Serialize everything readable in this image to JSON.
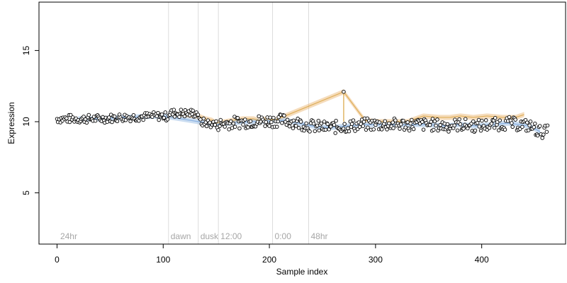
{
  "chart_data": {
    "type": "scatter",
    "title": "",
    "xlabel": "Sample index",
    "ylabel": "Expression",
    "xlim": [
      -17,
      479
    ],
    "ylim": [
      1.4,
      18.4
    ],
    "x_ticks": [
      0,
      100,
      200,
      300,
      400
    ],
    "y_ticks": [
      5,
      10,
      15
    ],
    "grid": false,
    "legend": "none",
    "markers": [
      {
        "x": 105,
        "label": "dawn"
      },
      {
        "x": 133,
        "label": "dusk"
      },
      {
        "x": 152,
        "label": "12:00"
      },
      {
        "x": 203,
        "label": "0:00"
      },
      {
        "x": 237,
        "label": "48hr"
      }
    ],
    "corner_label": {
      "x": 3,
      "label": "24hr"
    },
    "colors": {
      "background": "#ffffff",
      "axis": "#000000",
      "marker_line": "#dcdcdc",
      "marker_text": "#a6a6a6",
      "orange_fill": "#e8b26a",
      "blue_fill": "#8cb4e0",
      "orange_line": "#d9a441",
      "blue_line": "#7aa8df",
      "point_stroke": "#000000",
      "point_fill": "#ffffff"
    },
    "series": [
      {
        "name": "",
        "color": "#d9a441",
        "points": [
          [
            105,
            10.4
          ],
          [
            112,
            10.5
          ],
          [
            120,
            10.5
          ],
          [
            128,
            10.4
          ],
          [
            133,
            10.4
          ],
          [
            140,
            10.2
          ],
          [
            146,
            10.1
          ],
          [
            150,
            9.9
          ],
          [
            175,
            10.2
          ],
          [
            185,
            10.2
          ],
          [
            190,
            10.1
          ],
          [
            198,
            10.2
          ],
          [
            205,
            10.1
          ],
          [
            270,
            12.1
          ],
          [
            290,
            10.1
          ],
          [
            300,
            10.0
          ],
          [
            330,
            10.0
          ],
          [
            345,
            10.4
          ],
          [
            360,
            10.3
          ],
          [
            370,
            10.3
          ],
          [
            380,
            10.4
          ],
          [
            392,
            10.3
          ],
          [
            405,
            10.4
          ],
          [
            420,
            10.3
          ],
          [
            432,
            10.3
          ],
          [
            440,
            10.5
          ]
        ]
      },
      {
        "name": "",
        "color": "#7aa8df",
        "points": [
          [
            20,
            10.2
          ],
          [
            40,
            10.2
          ],
          [
            60,
            10.3
          ],
          [
            100,
            10.4
          ],
          [
            150,
            9.8
          ],
          [
            160,
            9.9
          ],
          [
            180,
            10.0
          ],
          [
            215,
            10.1
          ],
          [
            240,
            9.7
          ],
          [
            250,
            9.6
          ],
          [
            260,
            9.6
          ],
          [
            275,
            9.7
          ],
          [
            290,
            9.8
          ],
          [
            320,
            9.8
          ],
          [
            350,
            9.8
          ],
          [
            365,
            9.7
          ],
          [
            380,
            9.8
          ],
          [
            395,
            9.7
          ],
          [
            410,
            9.8
          ],
          [
            425,
            9.9
          ],
          [
            445,
            9.7
          ],
          [
            455,
            9.3
          ]
        ]
      }
    ]
  }
}
